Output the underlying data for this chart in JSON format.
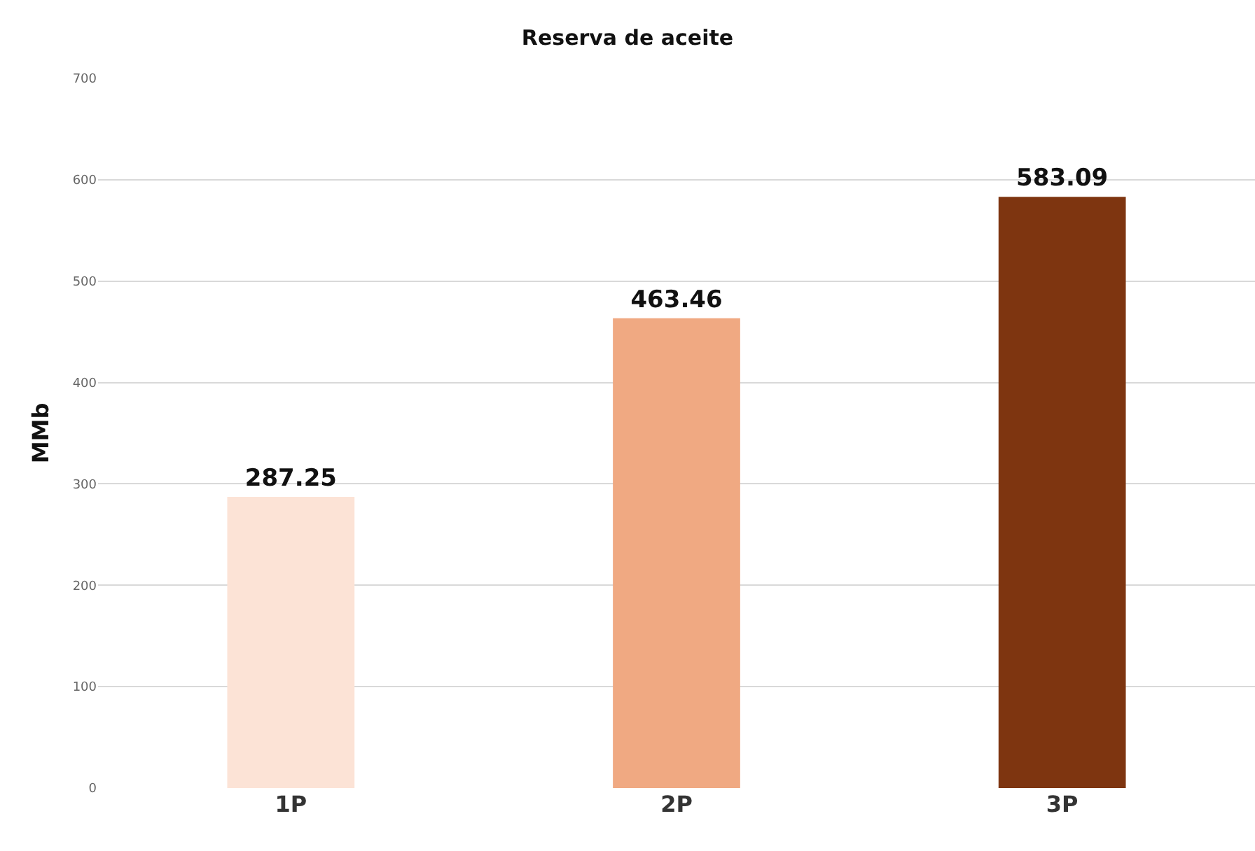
{
  "chart_data": {
    "type": "bar",
    "title": "Reserva de aceite",
    "ylabel": "MMb",
    "categories": [
      "1P",
      "2P",
      "3P"
    ],
    "values": [
      287.25,
      463.46,
      583.09
    ],
    "colors": [
      "#fce3d6",
      "#f0a982",
      "#7e3510"
    ],
    "ylim": [
      0,
      700
    ],
    "yticks": [
      0,
      100,
      200,
      300,
      400,
      500,
      600,
      700
    ],
    "grid": "y",
    "data_labels": true
  }
}
